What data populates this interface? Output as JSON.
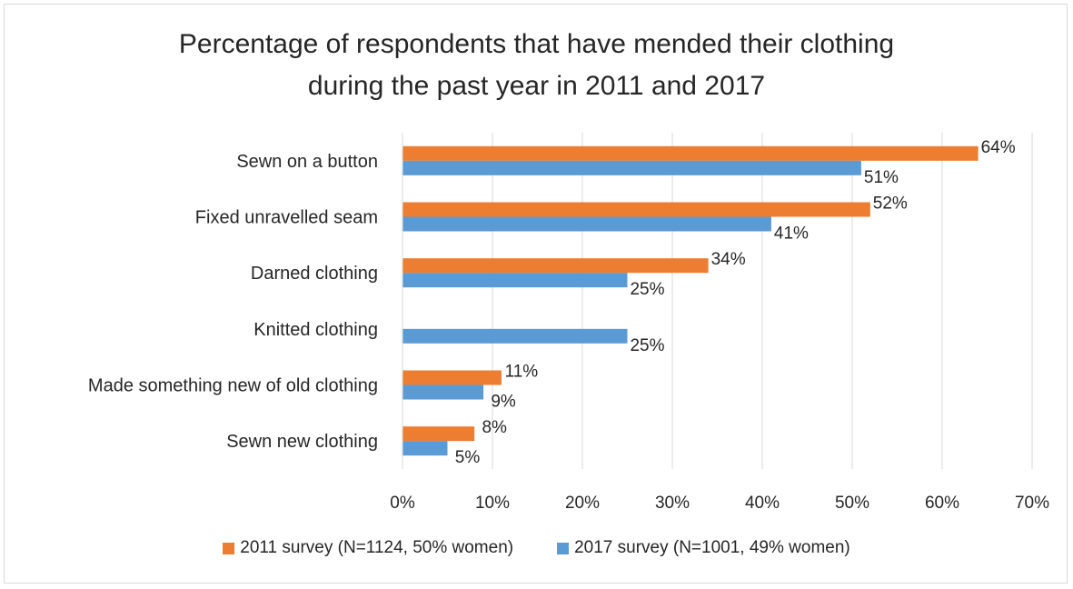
{
  "chart_data": {
    "type": "bar",
    "orientation": "horizontal",
    "title": "Percentage of respondents that have mended their clothing during the past year in 2011 and 2017",
    "title_lines": [
      "Percentage of respondents that have mended their clothing",
      "during the past year in 2011 and 2017"
    ],
    "categories": [
      "Sewn on a button",
      "Fixed unravelled seam",
      "Darned clothing",
      "Knitted clothing",
      "Made something new of old clothing",
      "Sewn new clothing"
    ],
    "series": [
      {
        "name": "2011 survey (N=1124, 50% women)",
        "color": "#ed7d31",
        "values": [
          64,
          52,
          34,
          null,
          11,
          8
        ],
        "labels": [
          "64%",
          "52%",
          "34%",
          "",
          "11%",
          "8%"
        ]
      },
      {
        "name": "2017 survey (N=1001, 49% women)",
        "color": "#5b9bd5",
        "values": [
          51,
          41,
          25,
          25,
          9,
          5
        ],
        "labels": [
          "51%",
          "41%",
          "25%",
          "25%",
          "9%",
          "5%"
        ]
      }
    ],
    "xlim": [
      0,
      70
    ],
    "xticks": [
      "0%",
      "10%",
      "20%",
      "30%",
      "40%",
      "50%",
      "60%",
      "70%"
    ],
    "grid": true,
    "legend_position": "bottom"
  }
}
